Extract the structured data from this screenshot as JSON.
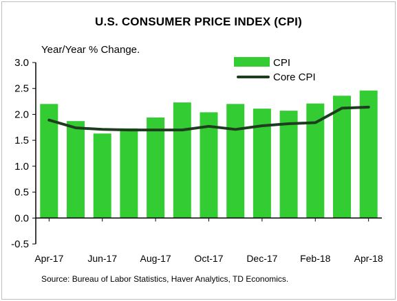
{
  "chart_data": {
    "type": "bar",
    "title": "U.S. CONSUMER PRICE INDEX (CPI)",
    "ylabel": "Year/Year % Change.",
    "xlabel": "",
    "ylim": [
      -0.5,
      3.0
    ],
    "yticks": [
      "3.0",
      "2.5",
      "2.0",
      "1.5",
      "1.0",
      "0.5",
      "0.0",
      "-0.5"
    ],
    "ytick_values": [
      3.0,
      2.5,
      2.0,
      1.5,
      1.0,
      0.5,
      0.0,
      -0.5
    ],
    "categories": [
      "Apr-17",
      "May-17",
      "Jun-17",
      "Jul-17",
      "Aug-17",
      "Sep-17",
      "Oct-17",
      "Nov-17",
      "Dec-17",
      "Jan-18",
      "Feb-18",
      "Mar-18",
      "Apr-18"
    ],
    "xtick_labels": [
      "Apr-17",
      "Jun-17",
      "Aug-17",
      "Oct-17",
      "Dec-17",
      "Feb-18",
      "Apr-18"
    ],
    "xtick_indices": [
      0,
      2,
      4,
      6,
      8,
      10,
      12
    ],
    "grid": false,
    "legend_position": "top-right",
    "series": [
      {
        "name": "CPI",
        "type": "bar",
        "color": "#33cc33",
        "values": [
          2.2,
          1.87,
          1.63,
          1.73,
          1.94,
          2.23,
          2.04,
          2.2,
          2.11,
          2.07,
          2.21,
          2.36,
          2.46
        ]
      },
      {
        "name": "Core CPI",
        "type": "line",
        "color": "#1e3d1e",
        "values": [
          1.89,
          1.74,
          1.71,
          1.7,
          1.7,
          1.7,
          1.77,
          1.71,
          1.78,
          1.82,
          1.84,
          2.12,
          2.14
        ]
      }
    ]
  },
  "footer": {
    "source": "Source: Bureau of Labor Statistics, Haver Analytics, TD Economics."
  }
}
